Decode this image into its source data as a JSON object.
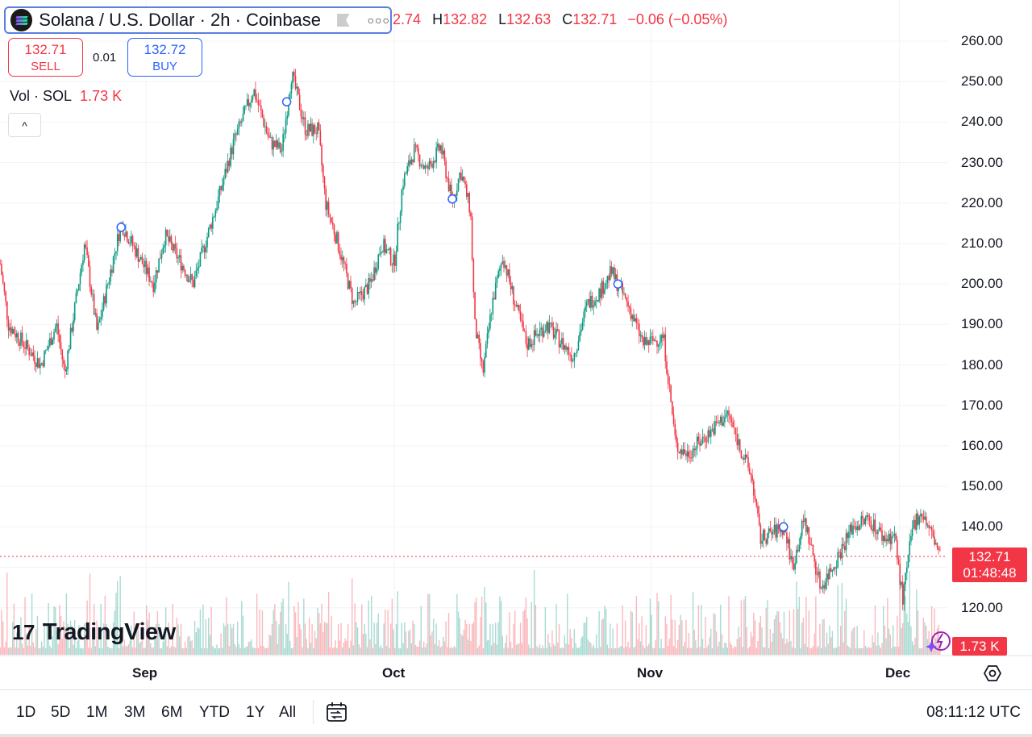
{
  "header": {
    "title": "Solana / U.S. Dollar · 2h · Coinbase",
    "more_icon": "ellipsis-icon"
  },
  "ohlc": {
    "open_partial": "2.74",
    "h_label": "H",
    "high": "132.82",
    "l_label": "L",
    "low": "132.63",
    "c_label": "C",
    "close": "132.71",
    "change": "−0.06 (−0.05%)"
  },
  "trade": {
    "sell_price": "132.71",
    "sell_label": "SELL",
    "spread": "0.01",
    "buy_price": "132.72",
    "buy_label": "BUY"
  },
  "volume": {
    "label": "Vol · SOL",
    "value": "1.73 K"
  },
  "collapse": "^",
  "y_axis": [
    "260.00",
    "250.00",
    "240.00",
    "230.00",
    "220.00",
    "210.00",
    "200.00",
    "190.00",
    "180.00",
    "170.00",
    "160.00",
    "150.00",
    "140.00",
    "120.00"
  ],
  "price_label": {
    "price": "132.71",
    "countdown": "01:48:48"
  },
  "volume_label": "1.73 K",
  "x_axis": [
    "Sep",
    "Oct",
    "Nov",
    "Dec"
  ],
  "branding": "TradingView",
  "periods": [
    "1D",
    "5D",
    "1M",
    "3M",
    "6M",
    "YTD",
    "1Y",
    "All"
  ],
  "clock": "08:11:12 UTC",
  "colors": {
    "up": "#089981",
    "down": "#f23645",
    "accent": "#2962ff"
  },
  "chart_data": {
    "type": "candlestick",
    "title": "Solana / U.S. Dollar · 2h · Coinbase",
    "x_unit": "days from Sep 1",
    "ylim": [
      113,
      268
    ],
    "last_price": 132.71,
    "key_points": [
      [
        -17.6,
        205
      ],
      [
        -16.6,
        190
      ],
      [
        -12.7,
        180
      ],
      [
        -10.8,
        190
      ],
      [
        -9.8,
        178
      ],
      [
        -7.4,
        210
      ],
      [
        -5.9,
        188
      ],
      [
        -3.0,
        215
      ],
      [
        0.9,
        200
      ],
      [
        2.3,
        212
      ],
      [
        5.7,
        200
      ],
      [
        8.6,
        220
      ],
      [
        10.6,
        235
      ],
      [
        13.0,
        248
      ],
      [
        15.0,
        235
      ],
      [
        16.4,
        233
      ],
      [
        17.6,
        252
      ],
      [
        19.3,
        238
      ],
      [
        20.8,
        238
      ],
      [
        21.7,
        220
      ],
      [
        23.2,
        210
      ],
      [
        25.1,
        195
      ],
      [
        27.1,
        200
      ],
      [
        28.5,
        210
      ],
      [
        30.0,
        205
      ],
      [
        31.0,
        225
      ],
      [
        32.4,
        233
      ],
      [
        33.9,
        228
      ],
      [
        35.6,
        234
      ],
      [
        37.0,
        220
      ],
      [
        38.0,
        228
      ],
      [
        39.2,
        218
      ],
      [
        39.7,
        190
      ],
      [
        40.7,
        178
      ],
      [
        41.8,
        195
      ],
      [
        43.1,
        207
      ],
      [
        44.6,
        195
      ],
      [
        46.0,
        185
      ],
      [
        48.4,
        190
      ],
      [
        51.6,
        182
      ],
      [
        53.3,
        195
      ],
      [
        54.8,
        198
      ],
      [
        56.2,
        203
      ],
      [
        58.2,
        195
      ],
      [
        60.1,
        185
      ],
      [
        62.5,
        187
      ],
      [
        64.0,
        160
      ],
      [
        65.4,
        158
      ],
      [
        67.9,
        163
      ],
      [
        70.3,
        168
      ],
      [
        71.7,
        160
      ],
      [
        73.2,
        152
      ],
      [
        74.2,
        137
      ],
      [
        77.1,
        140
      ],
      [
        78.1,
        130
      ],
      [
        79.5,
        142
      ],
      [
        81.5,
        125
      ],
      [
        83.4,
        132
      ],
      [
        85.3,
        140
      ],
      [
        87.3,
        142
      ],
      [
        89.2,
        137
      ],
      [
        90.4,
        138
      ],
      [
        91.4,
        122
      ],
      [
        92.6,
        140
      ],
      [
        93.6,
        144
      ],
      [
        94.9,
        138
      ],
      [
        96.0,
        133
      ]
    ],
    "event_markers": [
      [
        -3.0,
        214
      ],
      [
        17.0,
        245
      ],
      [
        37.0,
        221
      ],
      [
        57.0,
        200
      ],
      [
        77.0,
        140
      ]
    ]
  }
}
